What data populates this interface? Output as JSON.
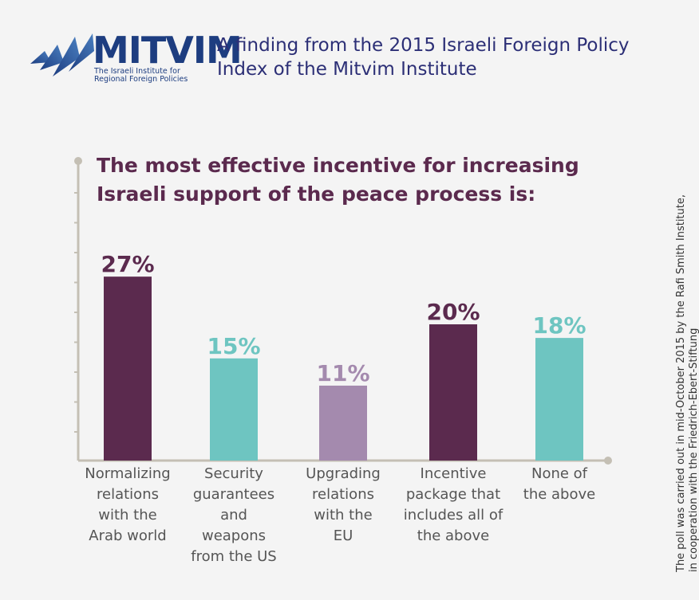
{
  "header": {
    "logo_name": "MITVIM",
    "logo_sub_line1": "The Israeli Institute for",
    "logo_sub_line2": "Regional Foreign Policies",
    "finding_line1": "A finding from the 2015 Israeli Foreign Policy",
    "finding_line2": "Index of the Mitvim Institute",
    "logo_icon": "stylized-wing-icon"
  },
  "side_note": {
    "line1": "The poll was carried out in mid-October 2015 by the Rafi Smith Institute,",
    "line2": "in cooperation with the Friedrich-Ebert-Stiftung"
  },
  "colors": {
    "dark_purple": "#5b2a4e",
    "teal": "#6ec5c1",
    "light_purple": "#a48aae",
    "axis": "#c4bfb4",
    "logo_blue": "#1d3d80"
  },
  "chart_data": {
    "type": "bar",
    "title": "The most effective incentive for increasing Israeli support of the peace process is:",
    "title_lines": [
      "The most effective incentive for increasing",
      "Israeli support of the peace process is:"
    ],
    "categories": [
      "Normalizing relations with the Arab world",
      "Security guarantees and weapons from the US",
      "Upgrading relations with the EU",
      "Incentive package that includes all of the above",
      "None of the above"
    ],
    "category_lines": [
      [
        "Normalizing",
        "relations",
        "with the",
        "Arab world"
      ],
      [
        "Security",
        "guarantees",
        "and",
        "weapons",
        "from the US"
      ],
      [
        "Upgrading",
        "relations",
        "with the",
        "EU"
      ],
      [
        "Incentive",
        "package that",
        "includes all of",
        "the above"
      ],
      [
        "None of",
        "the above"
      ]
    ],
    "values": [
      27,
      15,
      11,
      20,
      18
    ],
    "value_labels": [
      "27%",
      "15%",
      "11%",
      "20%",
      "18%"
    ],
    "bar_colors": [
      "#5b2a4e",
      "#6ec5c1",
      "#a48aae",
      "#5b2a4e",
      "#6ec5c1"
    ],
    "ylim": [
      0,
      43
    ],
    "grid": false,
    "legend": "none"
  }
}
